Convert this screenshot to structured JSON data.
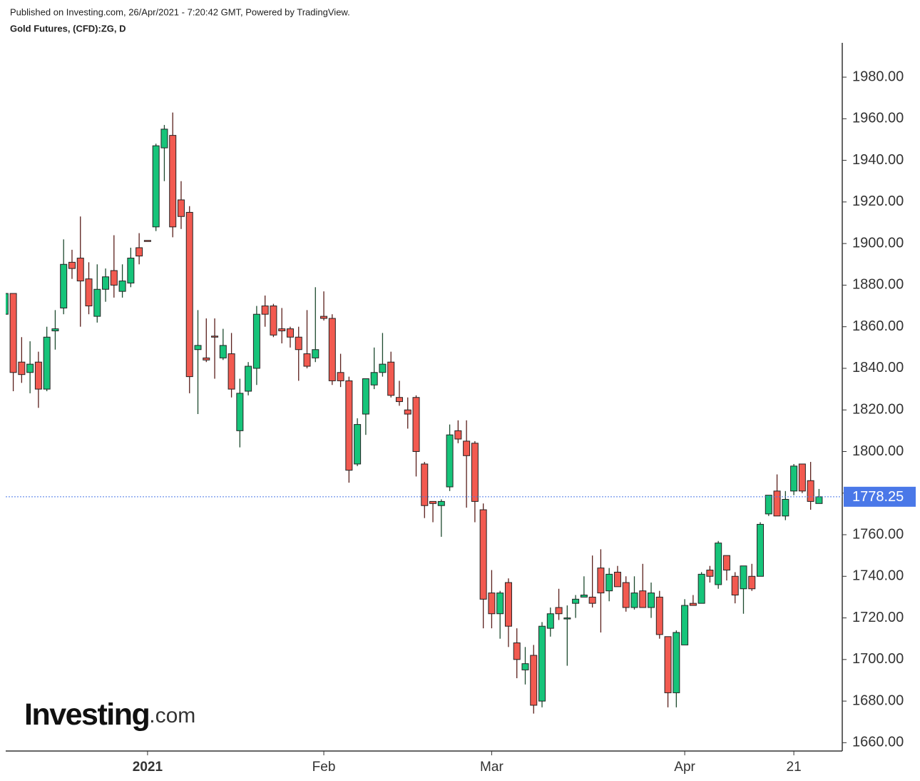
{
  "header": {
    "published": "Published on Investing.com, 26/Apr/2021 - 7:20:42 GMT, Powered by TradingView.",
    "instrument": "Gold Futures, (CFD):ZG, D"
  },
  "logo": [
    "Investing",
    ".com"
  ],
  "chart_data": {
    "type": "candlestick",
    "categories": [
      null,
      null,
      null,
      null,
      null,
      null,
      null,
      null,
      null,
      null,
      null,
      null,
      null,
      null,
      null,
      null,
      null,
      "2021",
      null,
      null,
      null,
      null,
      null,
      null,
      null,
      null,
      null,
      null,
      null,
      null,
      null,
      null,
      null,
      null,
      null,
      null,
      null,
      null,
      "Feb",
      null,
      null,
      null,
      null,
      null,
      null,
      null,
      null,
      null,
      null,
      null,
      null,
      null,
      null,
      null,
      null,
      null,
      null,
      null,
      "Mar",
      null,
      null,
      null,
      null,
      null,
      null,
      null,
      null,
      null,
      null,
      null,
      null,
      null,
      null,
      null,
      null,
      null,
      null,
      null,
      null,
      null,
      null,
      "Apr",
      null,
      null,
      null,
      null,
      null,
      null,
      null,
      null,
      null,
      null,
      null,
      null,
      "21",
      null,
      null,
      null
    ],
    "open": [
      1866,
      1876,
      1843,
      1838,
      1843,
      1830,
      1858,
      1869,
      1891,
      1893,
      1883,
      1865,
      1878,
      1887,
      1877,
      1881,
      1898,
      1901.5,
      1908,
      1946,
      1952,
      1921,
      1915,
      1849,
      1845,
      1855.5,
      1845,
      1847,
      1810,
      1829,
      1840,
      1870,
      1870,
      1859,
      1859,
      1855,
      1847,
      1845,
      1865,
      1864,
      1838,
      1834,
      1794,
      1818,
      1832,
      1838,
      1843,
      1826,
      1820,
      1826,
      1794,
      1776,
      1774,
      1783,
      1810,
      1805,
      1804,
      1772,
      1732,
      1722,
      1737,
      1708,
      1695,
      1702,
      1680,
      1715,
      1725,
      1720,
      1727,
      1730,
      1730,
      1744,
      1733,
      1742,
      1737,
      1725,
      1733,
      1725,
      1730,
      1711,
      1684,
      1707,
      1727,
      1727,
      1743,
      1736,
      1750,
      1740,
      1734,
      1740,
      1740,
      1770,
      1781,
      1769,
      1781,
      1794,
      1786,
      1775
    ],
    "high": [
      1876,
      1876,
      1855,
      1853,
      1848,
      1860,
      1868,
      1902,
      1897,
      1913,
      1891,
      1890,
      1888,
      1904,
      1890,
      1898,
      1905,
      1901.5,
      1948,
      1957,
      1963,
      1930,
      1918,
      1868,
      1864,
      1864,
      1859,
      1857,
      1835,
      1843,
      1870,
      1875,
      1871,
      1869,
      1860,
      1860,
      1868,
      1879,
      1877,
      1866,
      1847,
      1836,
      1816,
      1835,
      1850,
      1857,
      1848,
      1834,
      1826,
      1827,
      1795,
      1776,
      1777,
      1813,
      1815,
      1815,
      1805,
      1775,
      1743,
      1733,
      1739,
      1715,
      1706,
      1707,
      1718,
      1725,
      1734,
      1726,
      1731,
      1740,
      1750,
      1753,
      1744,
      1745,
      1740,
      1740,
      1746,
      1737,
      1733,
      1711,
      1714,
      1729,
      1731,
      1742,
      1745,
      1757,
      1750,
      1742,
      1745,
      1746,
      1766,
      1779,
      1789,
      1781,
      1794,
      1794,
      1795,
      1782
    ],
    "low": [
      1862,
      1829,
      1833,
      1828,
      1821,
      1829,
      1849,
      1866,
      1883,
      1860,
      1866,
      1862,
      1872,
      1874,
      1874,
      1879,
      1890,
      1901.5,
      1906,
      1930,
      1903,
      1907,
      1828,
      1818,
      1843,
      1835,
      1844,
      1826,
      1802,
      1827,
      1832,
      1860,
      1855,
      1852,
      1850,
      1834,
      1840,
      1843,
      1863,
      1832,
      1831,
      1785,
      1793,
      1808,
      1830,
      1836,
      1826,
      1822,
      1811,
      1788,
      1768,
      1766,
      1759,
      1781,
      1804,
      1773,
      1766,
      1715,
      1715,
      1710,
      1706,
      1691,
      1688,
      1674,
      1677,
      1711,
      1719,
      1697,
      1720,
      1730,
      1725,
      1713,
      1728,
      1735,
      1723,
      1724,
      1725,
      1720,
      1710,
      1677,
      1677,
      1707,
      1726,
      1727,
      1737,
      1734,
      1738,
      1727,
      1722,
      1733,
      1740,
      1769,
      1769,
      1767,
      1779,
      1780,
      1772,
      1775
    ],
    "close": [
      1876,
      1838,
      1837,
      1842,
      1830,
      1855,
      1859,
      1890,
      1888,
      1882,
      1870,
      1878,
      1884,
      1880,
      1882,
      1893,
      1894,
      1901,
      1947,
      1955,
      1908,
      1913,
      1836,
      1851,
      1844,
      1855,
      1851,
      1830,
      1828,
      1841,
      1866,
      1866,
      1856,
      1858,
      1855,
      1849,
      1841,
      1849,
      1864,
      1834,
      1834,
      1791,
      1813,
      1835,
      1838,
      1842,
      1827,
      1824,
      1818,
      1800,
      1774,
      1775,
      1776,
      1808,
      1806,
      1798,
      1776,
      1729,
      1722,
      1732,
      1716,
      1700,
      1698,
      1678,
      1716,
      1722,
      1722,
      1720,
      1729,
      1731,
      1727,
      1732,
      1741,
      1735,
      1725,
      1732,
      1725,
      1732,
      1712,
      1684,
      1713,
      1726,
      1726,
      1741,
      1740,
      1756,
      1743,
      1731,
      1745,
      1734,
      1765,
      1779,
      1769,
      1777,
      1793,
      1781,
      1776,
      1778.25
    ],
    "up_color": "#16c47a",
    "down_color": "#f25a50",
    "last_price": 1778.25,
    "last_price_color": "#4a78e8",
    "ylim": [
      1656,
      1996.5
    ],
    "yticks": [
      {
        "value": 1660,
        "label": "1660.00"
      },
      {
        "value": 1680,
        "label": "1680.00"
      },
      {
        "value": 1700,
        "label": "1700.00"
      },
      {
        "value": 1720,
        "label": "1720.00"
      },
      {
        "value": 1740,
        "label": "1740.00"
      },
      {
        "value": 1760,
        "label": "1760.00"
      },
      {
        "value": 1780,
        "label": "1780.00"
      },
      {
        "value": 1800,
        "label": "1800.00"
      },
      {
        "value": 1820,
        "label": "1820.00"
      },
      {
        "value": 1840,
        "label": "1840.00"
      },
      {
        "value": 1860,
        "label": "1860.00"
      },
      {
        "value": 1880,
        "label": "1880.00"
      },
      {
        "value": 1900,
        "label": "1900.00"
      },
      {
        "value": 1920,
        "label": "1920.00"
      },
      {
        "value": 1940,
        "label": "1940.00"
      },
      {
        "value": 1960,
        "label": "1960.00"
      },
      {
        "value": 1980,
        "label": "1980.00"
      }
    ],
    "grid": false
  }
}
